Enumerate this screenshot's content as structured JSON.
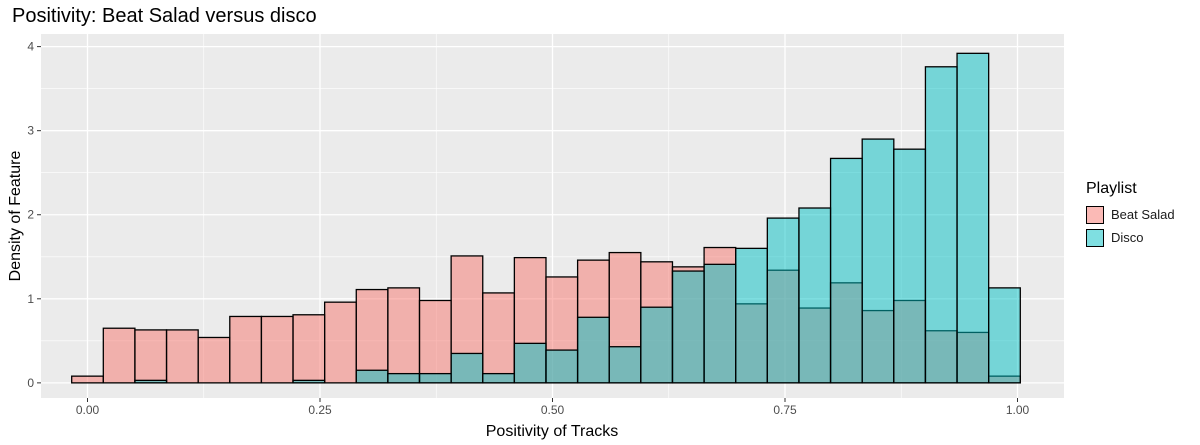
{
  "chart_data": {
    "type": "histogram",
    "title": "Positivity: Beat Salad versus disco",
    "xlabel": "Positivity of Tracks",
    "ylabel": "Density of Feature",
    "xlim": [
      -0.05,
      1.05
    ],
    "ylim": [
      -0.18,
      4.15
    ],
    "x_ticks": [
      0.0,
      0.25,
      0.5,
      0.75,
      1.0
    ],
    "x_tick_labels": [
      "0.00",
      "0.25",
      "0.50",
      "0.75",
      "1.00"
    ],
    "y_ticks": [
      0,
      1,
      2,
      3,
      4
    ],
    "y_tick_labels": [
      "0",
      "1",
      "2",
      "3",
      "4"
    ],
    "bin_width": 0.034,
    "bin_start": -0.017,
    "legend_title": "Playlist",
    "legend_position": "right",
    "grid": true,
    "series": [
      {
        "name": "Beat Salad",
        "color": "#F8766D",
        "values": [
          0.08,
          0.65,
          0.63,
          0.63,
          0.54,
          0.79,
          0.79,
          0.81,
          0.96,
          1.11,
          1.13,
          0.98,
          1.51,
          1.07,
          1.49,
          1.26,
          1.46,
          1.55,
          1.44,
          1.38,
          1.61,
          0.94,
          1.34,
          0.89,
          1.19,
          0.86,
          0.98,
          0.62,
          0.6,
          0.08
        ]
      },
      {
        "name": "Disco",
        "color": "#00BFC4",
        "values": [
          0,
          0,
          0.03,
          0,
          0,
          0,
          0,
          0.03,
          0,
          0.15,
          0.11,
          0.11,
          0.35,
          0.11,
          0.47,
          0.39,
          0.78,
          0.43,
          0.9,
          1.33,
          1.41,
          1.6,
          1.96,
          2.08,
          2.67,
          2.9,
          2.78,
          3.76,
          3.92,
          1.13
        ]
      }
    ]
  }
}
